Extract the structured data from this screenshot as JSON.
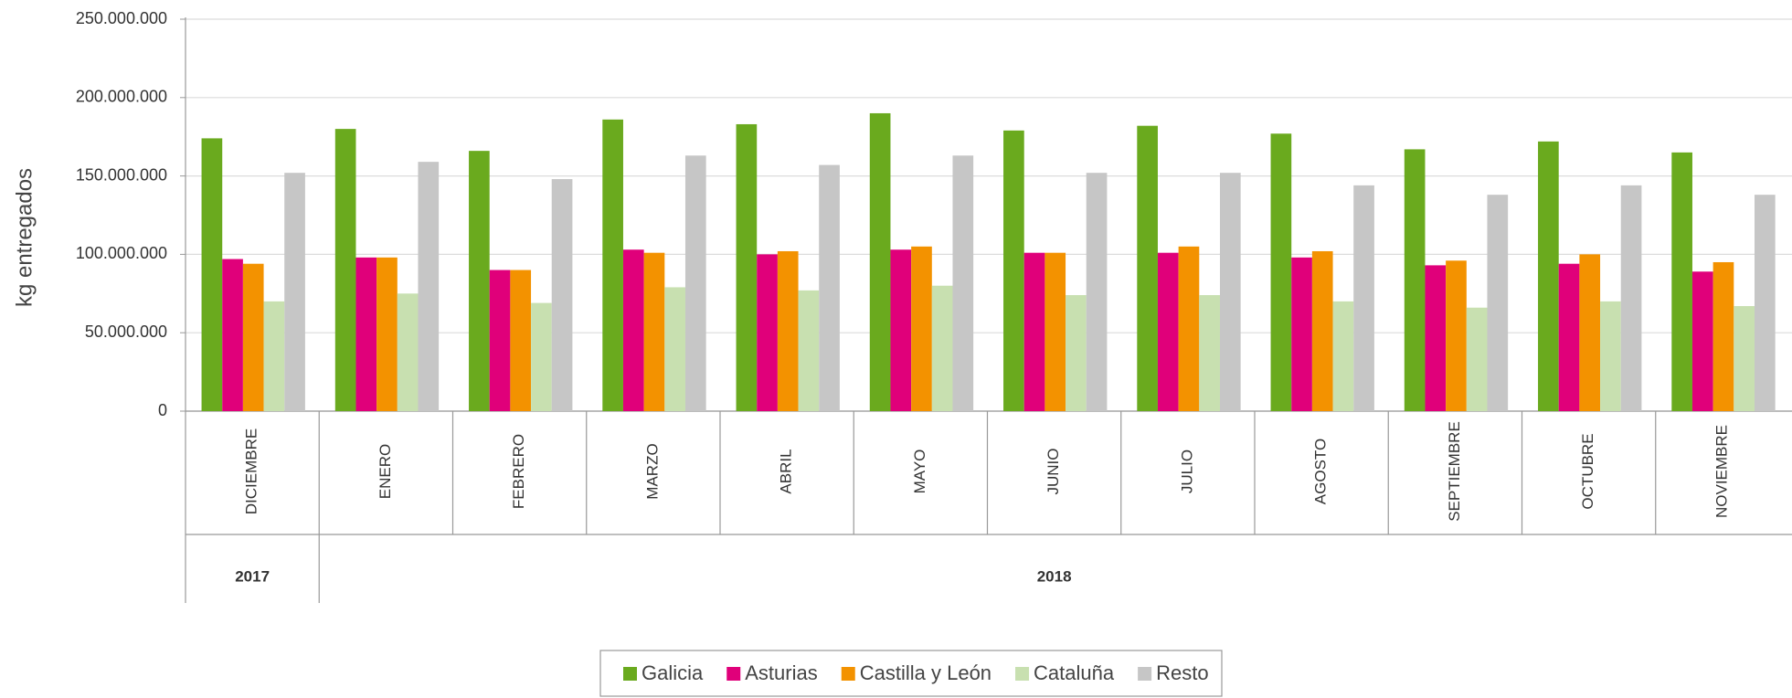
{
  "chart_data": {
    "type": "bar",
    "y_label": "kg entregados",
    "categories": [
      "DICIEMBRE",
      "ENERO",
      "FEBRERO",
      "MARZO",
      "ABRIL",
      "MAYO",
      "JUNIO",
      "JULIO",
      "AGOSTO",
      "SEPTIEMBRE",
      "OCTUBRE",
      "NOVIEMBRE"
    ],
    "x_groups": [
      {
        "label": "2017",
        "categories": [
          "DICIEMBRE"
        ]
      },
      {
        "label": "2018",
        "categories": [
          "ENERO",
          "FEBRERO",
          "MARZO",
          "ABRIL",
          "MAYO",
          "JUNIO",
          "JULIO",
          "AGOSTO",
          "SEPTIEMBRE",
          "OCTUBRE",
          "NOVIEMBRE"
        ]
      }
    ],
    "series": [
      {
        "name": "Galicia",
        "color": "#6aaa1e",
        "values": [
          174000000,
          180000000,
          166000000,
          186000000,
          183000000,
          190000000,
          179000000,
          182000000,
          177000000,
          167000000,
          172000000,
          165000000
        ]
      },
      {
        "name": "Asturias",
        "color": "#e0007a",
        "values": [
          97000000,
          98000000,
          90000000,
          103000000,
          100000000,
          103000000,
          101000000,
          101000000,
          98000000,
          93000000,
          94000000,
          89000000
        ]
      },
      {
        "name": "Castilla y León",
        "color": "#f39200",
        "values": [
          94000000,
          98000000,
          90000000,
          101000000,
          102000000,
          105000000,
          101000000,
          105000000,
          102000000,
          96000000,
          100000000,
          95000000
        ]
      },
      {
        "name": "Cataluña",
        "color": "#c8e0b0",
        "values": [
          70000000,
          75000000,
          69000000,
          79000000,
          77000000,
          80000000,
          74000000,
          74000000,
          70000000,
          66000000,
          70000000,
          67000000
        ]
      },
      {
        "name": "Resto",
        "color": "#c6c6c6",
        "values": [
          152000000,
          159000000,
          148000000,
          163000000,
          157000000,
          163000000,
          152000000,
          152000000,
          144000000,
          138000000,
          144000000,
          138000000
        ]
      }
    ],
    "ylim": [
      0,
      250000000
    ],
    "yticks": [
      0,
      {
        "value": 50000000,
        "label": "50.000.000"
      },
      {
        "value": 100000000,
        "label": "100.000.000"
      },
      {
        "value": 150000000,
        "label": "150.000.000"
      },
      {
        "value": 200000000,
        "label": "200.000.000"
      },
      {
        "value": 250000000,
        "label": "250.000.000"
      }
    ],
    "grid": true,
    "legend": "bottom"
  }
}
